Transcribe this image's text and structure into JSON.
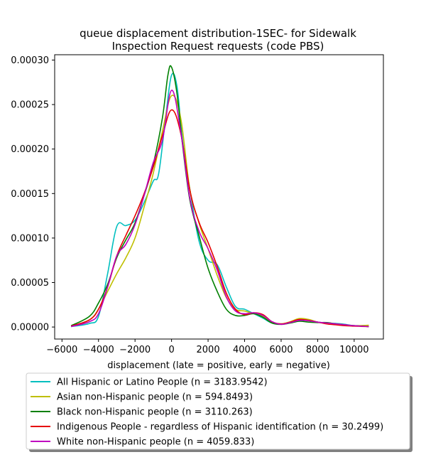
{
  "chart_data": {
    "type": "line",
    "title_lines": [
      "queue displacement distribution-1SEC-  for Sidewalk",
      "Inspection Request  requests (code PBS)"
    ],
    "xlabel": "displacement (late = positive, early = negative)",
    "ylabel": "",
    "xlim": [
      -6400,
      11600
    ],
    "ylim": [
      -1.35e-05,
      0.000306
    ],
    "xticks": [
      -6000,
      -4000,
      -2000,
      0,
      2000,
      4000,
      6000,
      8000,
      10000
    ],
    "xtick_labels": [
      "−6000",
      "−4000",
      "−2000",
      "0",
      "2000",
      "4000",
      "6000",
      "8000",
      "10000"
    ],
    "yticks": [
      0,
      5e-05,
      0.0001,
      0.00015,
      0.0002,
      0.00025,
      0.0003
    ],
    "ytick_labels": [
      "0.00000",
      "0.00005",
      "0.00010",
      "0.00015",
      "0.00020",
      "0.00025",
      "0.00030"
    ],
    "legend_position": "below",
    "series": [
      {
        "name": "All Hispanic or Latino People (n = 3183.9542)",
        "color": "#00bfbf",
        "x": [
          -5500,
          -4500,
          -4000,
          -3500,
          -3000,
          -2500,
          -2000,
          -1500,
          -1000,
          -700,
          -300,
          0,
          300,
          600,
          1000,
          1500,
          2000,
          2500,
          3000,
          3500,
          4000,
          4500,
          5000,
          5500,
          6000,
          6500,
          7000,
          7500,
          8000,
          8500,
          9000,
          9500,
          10000,
          10800
        ],
        "y": [
          5e-07,
          4e-06,
          1.2e-05,
          6e-05,
          0.000113,
          0.000114,
          0.00012,
          0.00014,
          0.000164,
          0.000173,
          0.00024,
          0.000283,
          0.00027,
          0.00021,
          0.000155,
          9.7e-05,
          7.5e-05,
          7e-05,
          4.5e-05,
          2.3e-05,
          2e-05,
          1.5e-05,
          1e-05,
          4.5e-06,
          3.5e-06,
          5e-06,
          7.5e-06,
          7.5e-06,
          5.5e-06,
          4.5e-06,
          4e-06,
          3e-06,
          1.5e-06,
          5e-07
        ]
      },
      {
        "name": "Asian non-Hispanic people (n = 594.8493)",
        "color": "#bfbf00",
        "x": [
          -5500,
          -4500,
          -4000,
          -3500,
          -3000,
          -2500,
          -2000,
          -1500,
          -1000,
          -500,
          0,
          500,
          1000,
          1500,
          2000,
          2500,
          3000,
          3500,
          4000,
          4500,
          5000,
          5500,
          6000,
          6500,
          7000,
          7500,
          8000,
          8500,
          9000,
          9500,
          10000,
          10800
        ],
        "y": [
          5e-07,
          8e-06,
          2e-05,
          4e-05,
          6e-05,
          7.8e-05,
          0.0001,
          0.000135,
          0.000173,
          0.00022,
          0.00026,
          0.000235,
          0.000155,
          0.000117,
          8.8e-05,
          5.8e-05,
          3.3e-05,
          2e-05,
          1.8e-05,
          1.5e-05,
          1.2e-05,
          5.5e-06,
          3.5e-06,
          6e-06,
          9.5e-06,
          8.5e-06,
          5.5e-06,
          4e-06,
          3.5e-06,
          2.5e-06,
          1.5e-06,
          2e-06
        ]
      },
      {
        "name": "Black non-Hispanic people (n = 3110.263)",
        "color": "#008000",
        "x": [
          -5500,
          -4500,
          -4000,
          -3500,
          -3000,
          -2500,
          -2000,
          -1500,
          -1000,
          -500,
          -200,
          0,
          300,
          600,
          1000,
          1500,
          2000,
          2500,
          3000,
          3500,
          4000,
          4500,
          5000,
          5500,
          6000,
          6500,
          7000,
          7500,
          8000,
          8500,
          9000,
          9500,
          10000,
          10800
        ],
        "y": [
          1.5e-06,
          1.2e-05,
          2.7e-05,
          4.8e-05,
          7.8e-05,
          9.8e-05,
          0.000117,
          0.000148,
          0.000183,
          0.000235,
          0.000283,
          0.000292,
          0.000262,
          0.000205,
          0.000143,
          0.000103,
          6.6e-05,
          4e-05,
          2e-05,
          1.3e-05,
          1.3e-05,
          1.5e-05,
          1.1e-05,
          4.5e-06,
          3e-06,
          4.5e-06,
          6.5e-06,
          5.5e-06,
          5e-06,
          5e-06,
          3.5e-06,
          2.5e-06,
          1.5e-06,
          5e-07
        ]
      },
      {
        "name": "Indigenous People - regardless of Hispanic identification (n = 30.2499)",
        "color": "#e60000",
        "x": [
          -5500,
          -4500,
          -4000,
          -3500,
          -3000,
          -2500,
          -2000,
          -1500,
          -1000,
          -500,
          0,
          500,
          1000,
          1500,
          2000,
          2500,
          3000,
          3500,
          4000,
          4500,
          5000,
          5500,
          6000,
          6500,
          7000,
          7500,
          8000,
          8500,
          9000,
          9500,
          10000,
          10800
        ],
        "y": [
          1e-06,
          8e-06,
          2e-05,
          4.5e-05,
          8e-05,
          0.000103,
          0.000125,
          0.00015,
          0.00018,
          0.000215,
          0.000244,
          0.000218,
          0.000154,
          0.000118,
          9.5e-05,
          6.8e-05,
          3.8e-05,
          2e-05,
          1.4e-05,
          1.6e-05,
          1.4e-05,
          6e-06,
          3.5e-06,
          5.5e-06,
          8.5e-06,
          7.5e-06,
          5.5e-06,
          3.5e-06,
          2.5e-06,
          1.5e-06,
          1e-06,
          5e-07
        ]
      },
      {
        "name": "White non-Hispanic people (n = 4059.833)",
        "color": "#bf00bf",
        "x": [
          -5500,
          -4500,
          -4000,
          -3500,
          -3000,
          -2500,
          -2000,
          -1500,
          -1000,
          -500,
          0,
          500,
          1000,
          1500,
          2000,
          2500,
          3000,
          3500,
          4000,
          4500,
          5000,
          5500,
          6000,
          6500,
          7000,
          7500,
          8000,
          8500,
          9000,
          9500,
          10000,
          10800
        ],
        "y": [
          5e-07,
          6e-06,
          1.5e-05,
          4.5e-05,
          8e-05,
          9.3e-05,
          0.000115,
          0.000148,
          0.000185,
          0.00021,
          0.000266,
          0.00022,
          0.000145,
          0.000108,
          8.8e-05,
          6.4e-05,
          3.4e-05,
          1.8e-05,
          1.5e-05,
          1.6e-05,
          1.3e-05,
          6e-06,
          3e-06,
          5e-06,
          7.5e-06,
          7e-06,
          5.5e-06,
          4.5e-06,
          3.5e-06,
          2.5e-06,
          1.5e-06,
          5e-07
        ]
      }
    ]
  }
}
